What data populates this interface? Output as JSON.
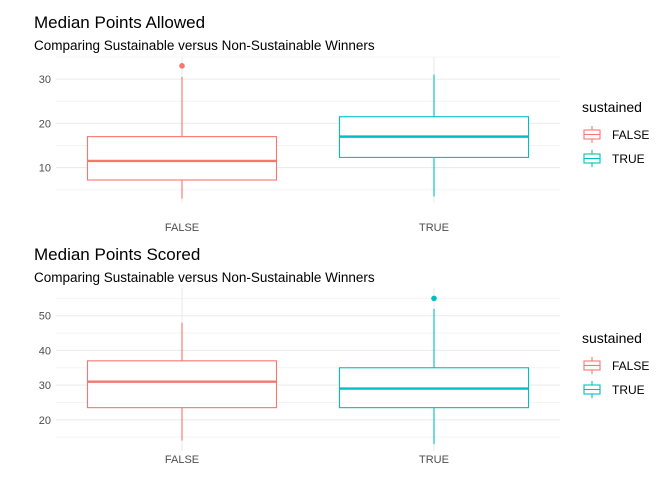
{
  "colors": {
    "false": "#F8766D",
    "true": "#00BFC4",
    "grid_major": "#ebebeb",
    "grid_minor": "#f4f4f4"
  },
  "chart_data": [
    {
      "type": "boxplot",
      "title": "Median Points Allowed",
      "subtitle": "Comparing Sustainable versus Non-Sustainable Winners",
      "xlabel": "",
      "ylabel": "",
      "categories": [
        "FALSE",
        "TRUE"
      ],
      "yticks": [
        10,
        20,
        30
      ],
      "ylim": [
        2,
        35
      ],
      "grid": true,
      "legend": {
        "title": "sustained",
        "entries": [
          "FALSE",
          "TRUE"
        ],
        "position": "right"
      },
      "boxes": [
        {
          "name": "FALSE",
          "min": 3,
          "q1": 7.2,
          "median": 11.5,
          "q3": 17,
          "max": 30.5,
          "outliers": [
            33
          ]
        },
        {
          "name": "TRUE",
          "min": 3.5,
          "q1": 12.3,
          "median": 17,
          "q3": 21.5,
          "max": 31,
          "outliers": []
        }
      ]
    },
    {
      "type": "boxplot",
      "title": "Median Points Scored",
      "subtitle": "Comparing Sustainable versus Non-Sustainable Winners",
      "xlabel": "",
      "ylabel": "",
      "categories": [
        "FALSE",
        "TRUE"
      ],
      "yticks": [
        20,
        30,
        40,
        50
      ],
      "ylim": [
        11,
        58
      ],
      "grid": true,
      "legend": {
        "title": "sustained",
        "entries": [
          "FALSE",
          "TRUE"
        ],
        "position": "right"
      },
      "boxes": [
        {
          "name": "FALSE",
          "min": 14,
          "q1": 23.5,
          "median": 31,
          "q3": 37,
          "max": 48,
          "outliers": []
        },
        {
          "name": "TRUE",
          "min": 13,
          "q1": 23.5,
          "median": 29,
          "q3": 35,
          "max": 52,
          "outliers": [
            55
          ]
        }
      ]
    }
  ]
}
